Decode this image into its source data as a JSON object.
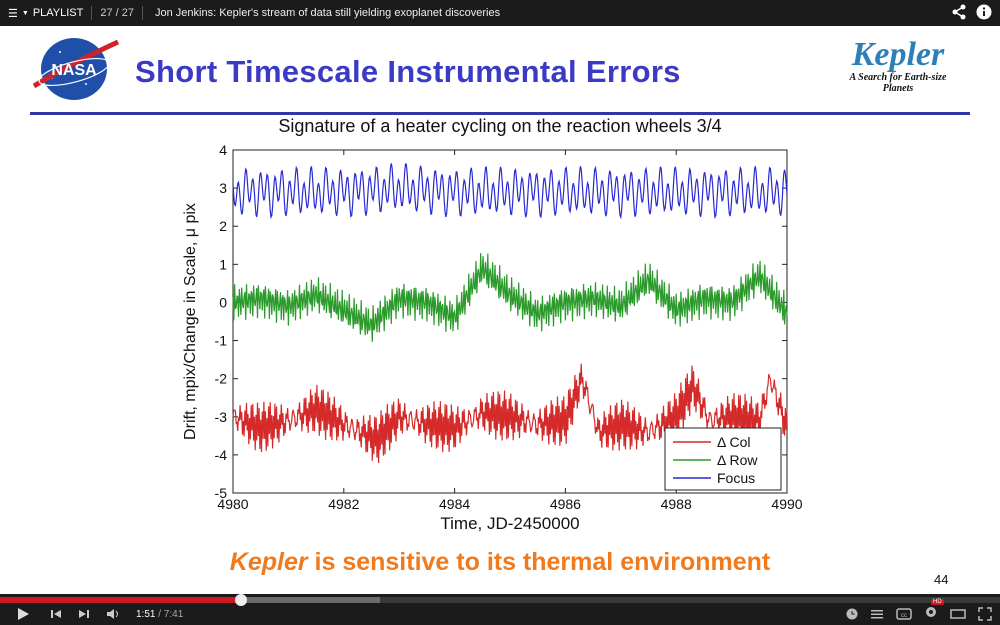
{
  "player": {
    "playlist_label": "PLAYLIST",
    "playlist_counter": "27 / 27",
    "video_title": "Jon Jenkins: Kepler's stream of data still yielding exoplanet discoveries",
    "current_time": "1:51",
    "duration": "/ 7:41",
    "played_fraction": 0.241,
    "buffered_fraction": 0.38,
    "hd_badge": "HD"
  },
  "slide": {
    "title": "Short Timescale Instrumental Errors",
    "nasa_logo_text": "NASA",
    "kepler_logo": "Kepler",
    "kepler_tagline_1": "A Search for Earth-size",
    "kepler_tagline_2": "Planets",
    "chart_title": "Signature of a heater cycling on the reaction wheels 3/4",
    "bottom_em": "Kepler",
    "bottom_rest": " is sensitive to its thermal environment",
    "slide_number": "44"
  },
  "chart_data": {
    "type": "line",
    "title": "Signature of a heater cycling on the reaction wheels 3/4",
    "xlabel": "Time, JD-2450000",
    "ylabel": "Drift, mpix/Change in Scale, μ pix",
    "xlim": [
      4980,
      4990
    ],
    "ylim": [
      -5,
      4
    ],
    "xticks": [
      "4980",
      "4982",
      "4984",
      "4986",
      "4988",
      "4990"
    ],
    "yticks": [
      "-5",
      "-4",
      "-3",
      "-2",
      "-1",
      "0",
      "1",
      "2",
      "3",
      "4"
    ],
    "legend_position": "bottom-right",
    "series": [
      {
        "name": "Δ Col",
        "color": "#d42a2a",
        "x": [
          4980.0,
          4980.5,
          4981.0,
          4981.5,
          4982.0,
          4982.3,
          4982.6,
          4983.0,
          4983.5,
          4984.0,
          4984.5,
          4985.0,
          4985.5,
          4986.0,
          4986.3,
          4986.6,
          4987.0,
          4987.5,
          4988.0,
          4988.3,
          4988.6,
          4989.0,
          4989.5,
          4989.7,
          4990.0
        ],
        "values": [
          -3.0,
          -3.3,
          -3.1,
          -2.8,
          -3.2,
          -3.4,
          -3.6,
          -3.0,
          -3.2,
          -3.3,
          -2.9,
          -3.0,
          -3.2,
          -3.1,
          -2.0,
          -3.4,
          -3.2,
          -3.4,
          -3.0,
          -2.2,
          -3.1,
          -3.0,
          -3.1,
          -2.0,
          -3.3
        ]
      },
      {
        "name": "Δ Row",
        "color": "#2a9a2a",
        "x": [
          4980.0,
          4980.5,
          4981.0,
          4981.5,
          4982.0,
          4982.5,
          4983.0,
          4983.5,
          4984.0,
          4984.5,
          4985.0,
          4985.5,
          4986.0,
          4986.5,
          4987.0,
          4987.5,
          4988.0,
          4988.5,
          4989.0,
          4989.5,
          4990.0
        ],
        "values": [
          0.0,
          0.1,
          -0.1,
          0.2,
          -0.2,
          -0.6,
          0.1,
          0.0,
          -0.4,
          0.9,
          0.2,
          -0.3,
          0.0,
          0.1,
          -0.1,
          0.6,
          -0.2,
          0.1,
          0.0,
          0.7,
          -0.3
        ]
      },
      {
        "name": "Focus",
        "color": "#2a2ad4",
        "x": [
          4980.0,
          4981.0,
          4982.0,
          4983.0,
          4984.0,
          4985.0,
          4986.0,
          4987.0,
          4988.0,
          4989.0,
          4990.0
        ],
        "values": [
          2.9,
          2.9,
          2.9,
          3.0,
          2.9,
          2.9,
          2.9,
          2.9,
          2.9,
          2.9,
          2.9
        ]
      }
    ]
  },
  "icons": {
    "menu": "list-icon",
    "share": "share-icon",
    "info": "info-icon"
  }
}
